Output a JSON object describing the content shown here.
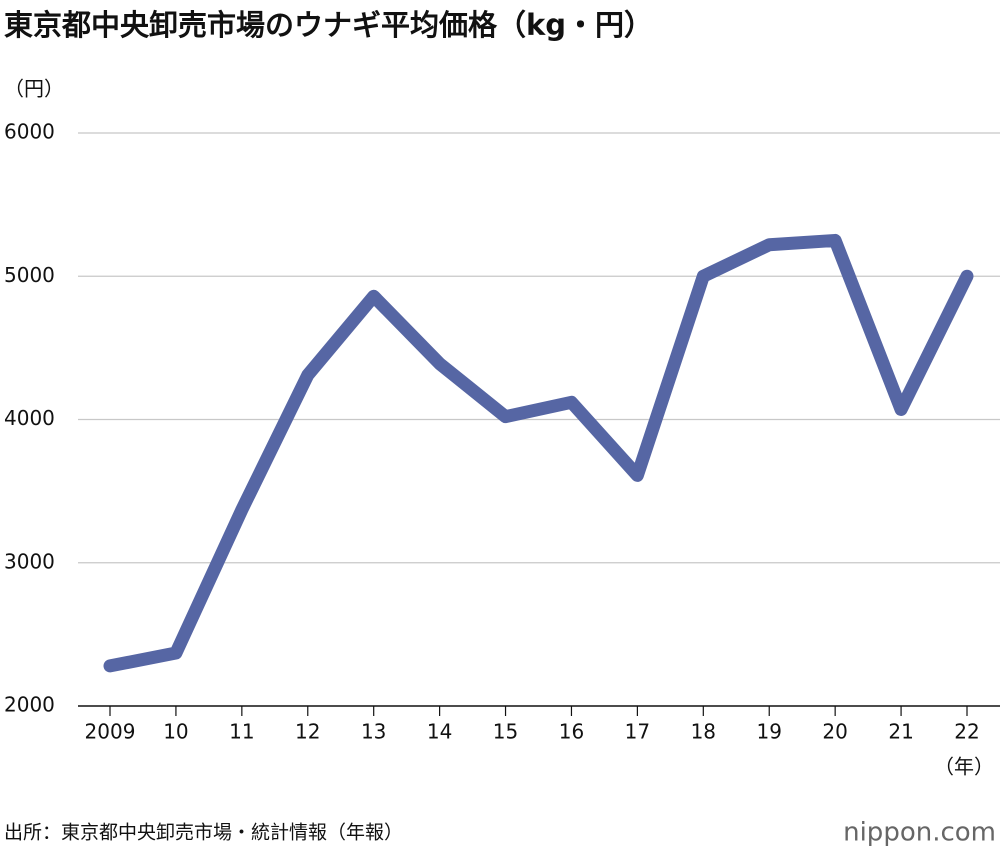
{
  "chart_data": {
    "type": "line",
    "title": "東京都中央卸売市場のウナギ平均価格（kg・円）",
    "y_label": "（円）",
    "x_label": "（年）",
    "source": "出所：東京都中央卸売市場・統計情報（年報）",
    "logo": "nippon.com",
    "categories": [
      "2009",
      "10",
      "11",
      "12",
      "13",
      "14",
      "15",
      "16",
      "17",
      "18",
      "19",
      "20",
      "21",
      "22"
    ],
    "series": [
      {
        "name": "ウナギ平均価格",
        "color": "#5666a4",
        "values": [
          2280,
          2370,
          3370,
          4310,
          4860,
          4390,
          4020,
          4120,
          3610,
          5000,
          5220,
          5250,
          4070,
          5000
        ]
      }
    ],
    "ylim": [
      2000,
      6000
    ],
    "yticks": [
      2000,
      3000,
      4000,
      5000,
      6000
    ],
    "grid": true
  }
}
